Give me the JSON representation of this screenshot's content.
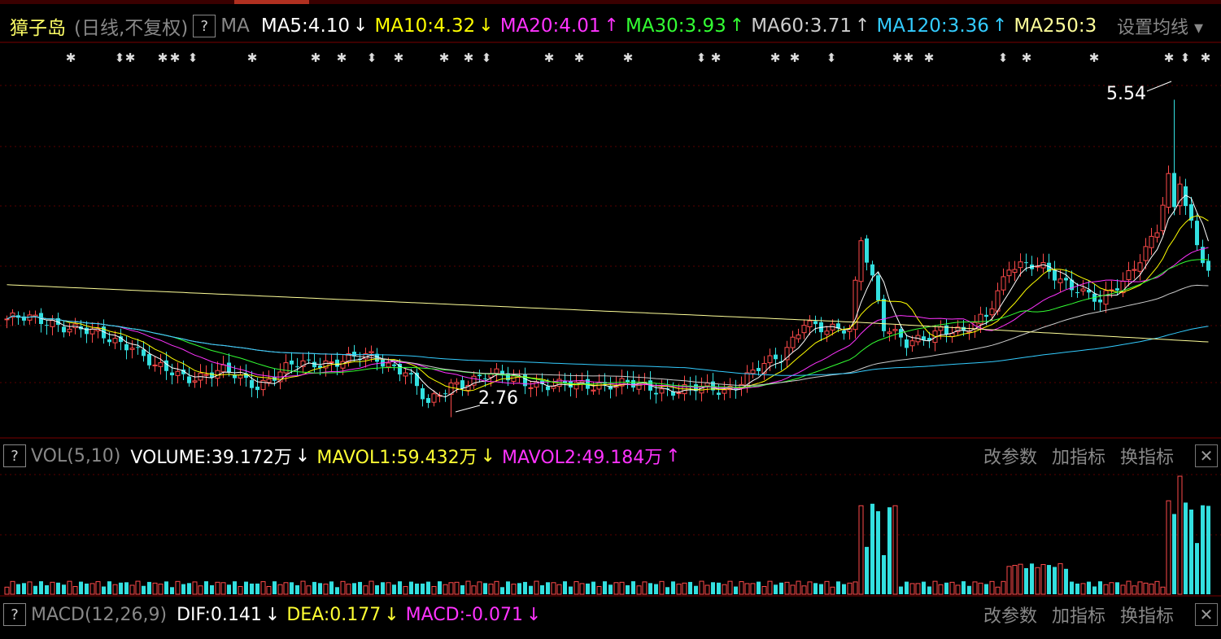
{
  "header": {
    "stock_name": "獐子岛",
    "period": "(日线,不复权)",
    "help": "?",
    "ma_label": "MA",
    "ma_items": [
      {
        "label": "MA5:4.10",
        "arrow": "↓",
        "color": "#ffffff"
      },
      {
        "label": "MA10:4.32",
        "arrow": "↓",
        "color": "#ffff00"
      },
      {
        "label": "MA20:4.01",
        "arrow": "↑",
        "color": "#ff33ff"
      },
      {
        "label": "MA30:3.93",
        "arrow": "↑",
        "color": "#33ff33"
      },
      {
        "label": "MA60:3.71",
        "arrow": "↑",
        "color": "#cccccc"
      },
      {
        "label": "MA120:3.36",
        "arrow": "↑",
        "color": "#33ccff"
      },
      {
        "label": "MA250:3",
        "arrow": "",
        "color": "#ffff99"
      }
    ],
    "settings": "设置均线"
  },
  "annotations": {
    "high": "5.54",
    "low": "2.76"
  },
  "volume_panel": {
    "help": "?",
    "name": "VOL(5,10)",
    "volume": "VOLUME:39.172万",
    "volume_arrow": "↓",
    "mavol1": "MAVOL1:59.432万",
    "mavol1_arrow": "↓",
    "mavol2": "MAVOL2:49.184万",
    "mavol2_arrow": "↑",
    "btn_params": "改参数",
    "btn_add": "加指标",
    "btn_switch": "换指标",
    "close": "✕"
  },
  "macd_panel": {
    "help": "?",
    "name": "MACD(12,26,9)",
    "dif": "DIF:0.141",
    "dif_arrow": "↓",
    "dea": "DEA:0.177",
    "dea_arrow": "↓",
    "macd": "MACD:-0.071",
    "macd_arrow": "↓",
    "btn_params": "改参数",
    "btn_add": "加指标",
    "btn_switch": "换指标",
    "close": "✕"
  },
  "colors": {
    "up": "#ff4a4a",
    "down": "#33e0e0",
    "grid": "#5a0000"
  },
  "chart_data": {
    "type": "candlestick",
    "ylim": [
      2.6,
      5.7
    ],
    "high": 5.54,
    "low": 2.76,
    "anchors": [
      [
        0,
        3.62
      ],
      [
        8,
        3.6
      ],
      [
        14,
        3.5
      ],
      [
        22,
        3.4
      ],
      [
        26,
        3.18
      ],
      [
        32,
        3.12
      ],
      [
        38,
        3.15
      ],
      [
        44,
        3.05
      ],
      [
        50,
        3.2
      ],
      [
        56,
        3.25
      ],
      [
        64,
        3.28
      ],
      [
        70,
        3.18
      ],
      [
        74,
        2.85
      ],
      [
        78,
        3.05
      ],
      [
        84,
        3.12
      ],
      [
        90,
        3.1
      ],
      [
        96,
        3.02
      ],
      [
        104,
        3.06
      ],
      [
        112,
        3.02
      ],
      [
        118,
        3.0
      ],
      [
        126,
        3.0
      ],
      [
        132,
        3.18
      ],
      [
        136,
        3.28
      ],
      [
        140,
        3.62
      ],
      [
        144,
        3.5
      ],
      [
        148,
        3.52
      ],
      [
        150,
        4.35
      ],
      [
        152,
        4.0
      ],
      [
        154,
        3.55
      ],
      [
        158,
        3.38
      ],
      [
        164,
        3.55
      ],
      [
        168,
        3.48
      ],
      [
        172,
        3.65
      ],
      [
        176,
        4.1
      ],
      [
        182,
        4.05
      ],
      [
        188,
        3.9
      ],
      [
        192,
        3.75
      ],
      [
        196,
        3.95
      ],
      [
        202,
        4.4
      ],
      [
        205,
        5.04
      ],
      [
        207,
        4.6
      ],
      [
        209,
        4.3
      ],
      [
        211,
        4.05
      ]
    ],
    "count": 212
  }
}
